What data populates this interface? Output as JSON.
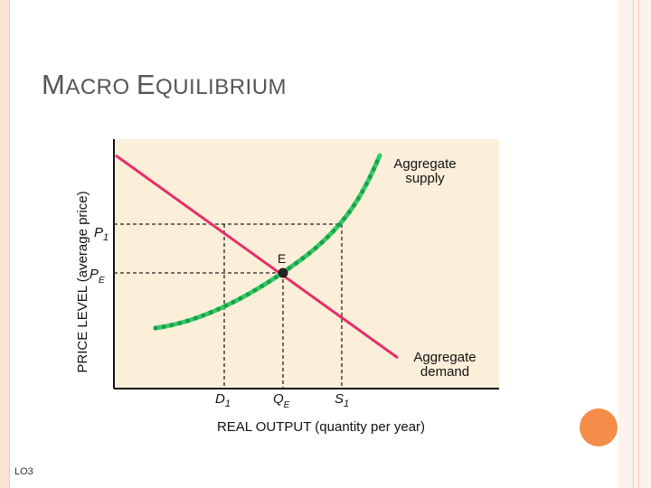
{
  "title": {
    "first_cap": "M",
    "first_rest": "ACRO",
    "second_cap": "E",
    "second_rest": "QUILIBRIUM"
  },
  "footer": {
    "objective": "LO3"
  },
  "colors": {
    "panel": "#fbefd9",
    "supply": "#33cc66",
    "demand": "#e52e6a",
    "accent": "#f58d4a"
  },
  "diagram": {
    "y_axis_label": "PRICE LEVEL (average price)",
    "x_axis_label": "REAL OUTPUT (quantity per year)",
    "supply_label_line1": "Aggregate",
    "supply_label_line2": "supply",
    "demand_label_line1": "Aggregate",
    "demand_label_line2": "demand",
    "price_labels": {
      "p1_main": "P",
      "p1_sub": "1",
      "pe_main": "P",
      "pe_sub": "E"
    },
    "quantity_labels": {
      "d1_main": "D",
      "d1_sub": "1",
      "qe_main": "Q",
      "qe_sub": "E",
      "s1_main": "S",
      "s1_sub": "1"
    },
    "equilibrium_label": "E"
  }
}
